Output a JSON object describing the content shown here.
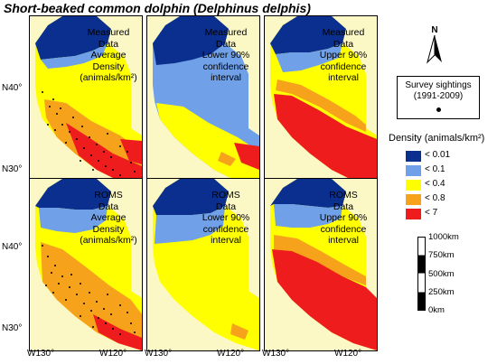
{
  "title": "Short-beaked common dolphin  (Delphinus delphis)",
  "colors": {
    "background": "#fbf8c6",
    "dark_blue": "#0b2f8f",
    "light_blue": "#6fa0e8",
    "yellow": "#ffff00",
    "orange": "#f7a21b",
    "red": "#ee1c1c"
  },
  "panels": [
    {
      "source": "Measured\nData",
      "metric": "Average\nDensity\n(animals/km²)"
    },
    {
      "source": "Measured\nData",
      "metric": "Lower 90%\nconfidence\ninterval"
    },
    {
      "source": "Measured\nData",
      "metric": "Upper 90%\nconfidence\ninterval"
    },
    {
      "source": "ROMS\nData",
      "metric": "Average\nDensity\n(animals/km²)"
    },
    {
      "source": "ROMS\nData",
      "metric": "Lower 90%\nconfidence\ninterval"
    },
    {
      "source": "ROMS\nData",
      "metric": "Upper 90%\nconfidence\ninterval"
    }
  ],
  "axes": {
    "lat_top": [
      "N40°",
      "N30°"
    ],
    "lat_bottom": [
      "N40°",
      "N30°"
    ],
    "lon": [
      "W130°",
      "W120°",
      "W130°",
      "W120°",
      "W130°",
      "W120°"
    ]
  },
  "north_arrow": {
    "label": "N",
    "icon": "north-arrow-icon"
  },
  "sightings": {
    "label": "Survey sightings\n(1991-2009)",
    "icon": "black-dot-icon"
  },
  "legend": {
    "title": "Density (animals/km²)",
    "items": [
      {
        "label": "< 0.01",
        "color": "#0b2f8f"
      },
      {
        "label": "< 0.1",
        "color": "#6fa0e8"
      },
      {
        "label": "< 0.4",
        "color": "#ffff00"
      },
      {
        "label": "< 0.8",
        "color": "#f7a21b"
      },
      {
        "label": "< 7",
        "color": "#ee1c1c"
      }
    ]
  },
  "scale_bar": {
    "labels": [
      "1000km",
      "750km",
      "500km",
      "250km",
      "0km"
    ]
  }
}
